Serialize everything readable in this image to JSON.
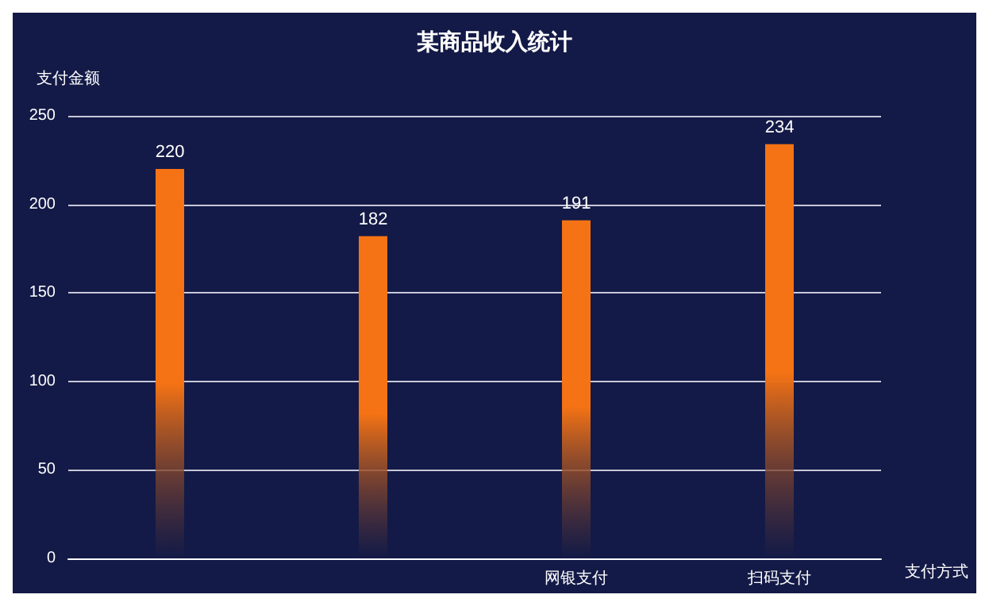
{
  "chart_data": {
    "type": "bar",
    "title": "某商品收入统计",
    "xlabel": "支付方式",
    "ylabel": "支付金额",
    "categories": [
      null,
      null,
      "网银支付",
      "扫码支付"
    ],
    "values": [
      220,
      182,
      191,
      234
    ],
    "color": "#f57314",
    "ylim": [
      0,
      250
    ],
    "yticks": [
      0,
      50,
      100,
      150,
      200,
      250
    ],
    "grid": "y",
    "data_labels": true
  }
}
